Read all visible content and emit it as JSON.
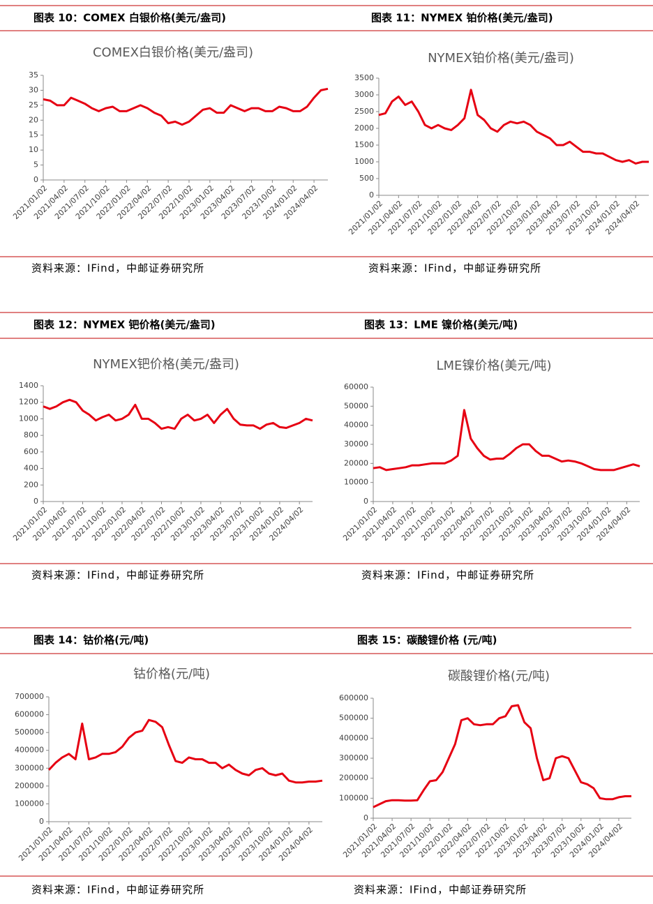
{
  "figures": [
    {
      "header": "图表 10：COMEX 白银价格(美元/盎司)",
      "source": "资料来源：IFind，中邮证券研究所"
    },
    {
      "header": "图表 11：NYMEX 铂价格(美元/盎司)",
      "source": "资料来源：IFind，中邮证券研究所"
    },
    {
      "header": "图表 12：NYMEX 钯价格(美元/盎司)",
      "source": "资料来源：IFind，中邮证券研究所"
    },
    {
      "header": "图表 13：LME 镍价格(美元/吨)",
      "source": "资料来源：IFind，中邮证券研究所"
    },
    {
      "header": "图表 14：钴价格(元/吨)",
      "source": "资料来源：IFind，中邮证券研究所"
    },
    {
      "header": "图表 15：碳酸锂价格 (元/吨)",
      "source": "资料来源：IFind，中邮证券研究所"
    }
  ],
  "chart_data": [
    {
      "type": "line",
      "title": "COMEX白银价格(美元/盎司)",
      "color": "#e60012",
      "categories": [
        "2021/01/02",
        null,
        null,
        "2021/04/02",
        null,
        null,
        "2021/07/02",
        null,
        null,
        "2021/10/02",
        null,
        null,
        "2022/01/02",
        null,
        null,
        "2022/04/02",
        null,
        null,
        "2022/07/02",
        null,
        null,
        "2022/10/02",
        null,
        null,
        "2023/01/02",
        null,
        null,
        "2023/04/02",
        null,
        null,
        "2023/07/02",
        null,
        null,
        "2023/10/02",
        null,
        null,
        "2024/01/02",
        null,
        null,
        "2024/04/02",
        null,
        null
      ],
      "values": [
        27,
        26.5,
        25,
        25,
        27.5,
        26.5,
        25.5,
        24,
        23,
        24,
        24.5,
        23,
        23,
        24,
        25,
        24,
        22.5,
        21.5,
        19,
        19.5,
        18.5,
        19.5,
        21.5,
        23.5,
        24,
        22.5,
        22.5,
        25,
        24,
        23,
        24,
        24,
        23,
        23,
        24.5,
        24,
        23,
        23,
        24.5,
        27.5,
        30,
        30.5
      ],
      "ylim": [
        0,
        35
      ],
      "yticks": [
        0,
        5,
        10,
        15,
        20,
        25,
        30,
        35
      ]
    },
    {
      "type": "line",
      "title": "NYMEX铂价格(美元/盎司)",
      "color": "#e60012",
      "categories": [
        "2021/01/02",
        null,
        null,
        "2021/04/02",
        null,
        null,
        "2021/07/02",
        null,
        null,
        "2021/10/02",
        null,
        null,
        "2022/01/02",
        null,
        null,
        "2022/04/02",
        null,
        null,
        "2022/07/02",
        null,
        null,
        "2022/10/02",
        null,
        null,
        "2023/01/02",
        null,
        null,
        "2023/04/02",
        null,
        null,
        "2023/07/02",
        null,
        null,
        "2023/10/02",
        null,
        null,
        "2024/01/02",
        null,
        null,
        "2024/04/02",
        null,
        null
      ],
      "values": [
        2400,
        2450,
        2800,
        2950,
        2700,
        2800,
        2500,
        2100,
        2000,
        2100,
        2000,
        1950,
        2100,
        2300,
        3150,
        2400,
        2250,
        2000,
        1900,
        2100,
        2200,
        2150,
        2200,
        2100,
        1900,
        1800,
        1700,
        1500,
        1500,
        1600,
        1450,
        1300,
        1300,
        1250,
        1250,
        1150,
        1050,
        1000,
        1050,
        950,
        1000,
        1000
      ],
      "ylim": [
        0,
        3500
      ],
      "yticks": [
        0,
        500,
        1000,
        1500,
        2000,
        2500,
        3000,
        3500
      ]
    },
    {
      "type": "line",
      "title": "NYMEX钯价格(美元/盎司)",
      "color": "#e60012",
      "categories": [
        "2021/01/02",
        null,
        null,
        "2021/04/02",
        null,
        null,
        "2021/07/02",
        null,
        null,
        "2021/10/02",
        null,
        null,
        "2022/01/02",
        null,
        null,
        "2022/04/02",
        null,
        null,
        "2022/07/02",
        null,
        null,
        "2022/10/02",
        null,
        null,
        "2023/01/02",
        null,
        null,
        "2023/04/02",
        null,
        null,
        "2023/07/02",
        null,
        null,
        "2023/10/02",
        null,
        null,
        "2024/01/02",
        null,
        null,
        "2024/04/02",
        null,
        null
      ],
      "values": [
        1150,
        1120,
        1150,
        1200,
        1230,
        1200,
        1100,
        1050,
        980,
        1020,
        1050,
        980,
        1000,
        1050,
        1170,
        1000,
        1000,
        950,
        880,
        900,
        880,
        1000,
        1050,
        980,
        1000,
        1050,
        950,
        1050,
        1120,
        1000,
        930,
        920,
        920,
        880,
        930,
        950,
        900,
        890,
        920,
        950,
        1000,
        980
      ],
      "ylim": [
        0,
        1400
      ],
      "yticks": [
        0,
        200,
        400,
        600,
        800,
        1000,
        1200,
        1400
      ]
    },
    {
      "type": "line",
      "title": "LME镍价格(美元/吨)",
      "color": "#e60012",
      "categories": [
        "2021/01/02",
        null,
        null,
        "2021/04/02",
        null,
        null,
        "2021/07/02",
        null,
        null,
        "2021/10/02",
        null,
        null,
        "2022/01/02",
        null,
        null,
        "2022/04/02",
        null,
        null,
        "2022/07/02",
        null,
        null,
        "2022/10/02",
        null,
        null,
        "2023/01/02",
        null,
        null,
        "2023/04/02",
        null,
        null,
        "2023/07/02",
        null,
        null,
        "2023/10/02",
        null,
        null,
        "2024/01/02",
        null,
        null,
        "2024/04/02",
        null,
        null
      ],
      "values": [
        17500,
        18000,
        16500,
        17000,
        17500,
        18000,
        19000,
        19000,
        19500,
        20000,
        20000,
        20000,
        21500,
        24000,
        48000,
        33000,
        28000,
        24000,
        22000,
        22500,
        22500,
        25000,
        28000,
        30000,
        30000,
        26500,
        24000,
        24000,
        22500,
        21000,
        21500,
        21000,
        20000,
        18500,
        17000,
        16500,
        16500,
        16500,
        17500,
        18500,
        19500,
        18500
      ],
      "ylim": [
        0,
        60000
      ],
      "yticks": [
        0,
        10000,
        20000,
        30000,
        40000,
        50000,
        60000
      ]
    },
    {
      "type": "line",
      "title": "钴价格(元/吨)",
      "color": "#e60012",
      "categories": [
        "2021/01/02",
        null,
        null,
        "2021/04/02",
        null,
        null,
        "2021/07/02",
        null,
        null,
        "2021/10/02",
        null,
        null,
        "2022/01/02",
        null,
        null,
        "2022/04/02",
        null,
        null,
        "2022/07/02",
        null,
        null,
        "2022/10/02",
        null,
        null,
        "2023/01/02",
        null,
        null,
        "2023/04/02",
        null,
        null,
        "2023/07/02",
        null,
        null,
        "2023/10/02",
        null,
        null,
        "2024/01/02",
        null,
        null,
        "2024/04/02",
        null,
        null
      ],
      "values": [
        290000,
        330000,
        360000,
        380000,
        350000,
        550000,
        350000,
        360000,
        380000,
        380000,
        390000,
        420000,
        470000,
        500000,
        510000,
        570000,
        560000,
        530000,
        430000,
        340000,
        330000,
        360000,
        350000,
        350000,
        330000,
        330000,
        300000,
        320000,
        290000,
        270000,
        260000,
        290000,
        300000,
        270000,
        260000,
        270000,
        230000,
        220000,
        220000,
        225000,
        225000,
        230000
      ],
      "ylim": [
        0,
        700000
      ],
      "yticks": [
        0,
        100000,
        200000,
        300000,
        400000,
        500000,
        600000,
        700000
      ]
    },
    {
      "type": "line",
      "title": "碳酸锂价格(元/吨)",
      "color": "#e60012",
      "categories": [
        "2021/01/02",
        null,
        null,
        "2021/04/02",
        null,
        null,
        "2021/07/02",
        null,
        null,
        "2021/10/02",
        null,
        null,
        "2022/01/02",
        null,
        null,
        "2022/04/02",
        null,
        null,
        "2022/07/02",
        null,
        null,
        "2022/10/02",
        null,
        null,
        "2023/01/02",
        null,
        null,
        "2023/04/02",
        null,
        null,
        "2023/07/02",
        null,
        null,
        "2023/10/02",
        null,
        null,
        "2024/01/02",
        null,
        null,
        "2024/04/02",
        null,
        null
      ],
      "values": [
        55000,
        70000,
        85000,
        90000,
        90000,
        88000,
        88000,
        90000,
        140000,
        185000,
        190000,
        230000,
        300000,
        370000,
        490000,
        500000,
        470000,
        465000,
        470000,
        470000,
        500000,
        510000,
        560000,
        565000,
        480000,
        450000,
        300000,
        190000,
        200000,
        300000,
        310000,
        300000,
        240000,
        180000,
        170000,
        150000,
        100000,
        95000,
        95000,
        105000,
        110000,
        110000
      ],
      "ylim": [
        0,
        600000
      ],
      "yticks": [
        0,
        100000,
        200000,
        300000,
        400000,
        500000,
        600000
      ]
    }
  ]
}
